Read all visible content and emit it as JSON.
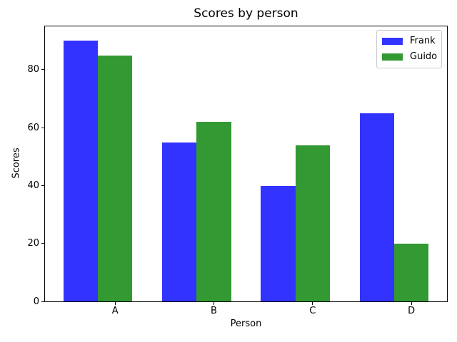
{
  "chart_data": {
    "type": "bar",
    "title": "Scores by person",
    "xlabel": "Person",
    "ylabel": "Scores",
    "categories": [
      "A",
      "B",
      "C",
      "D"
    ],
    "series": [
      {
        "name": "Frank",
        "color": "#3333ff",
        "values": [
          90,
          55,
          40,
          65
        ]
      },
      {
        "name": "Guido",
        "color": "#339933",
        "values": [
          85,
          62,
          54,
          20
        ]
      }
    ],
    "yticks": [
      0,
      20,
      40,
      60,
      80
    ],
    "ylim": [
      0,
      95
    ],
    "bar_width_fraction": 0.35,
    "grid": false,
    "legend": {
      "position": "upper right",
      "entries": [
        "Frank",
        "Guido"
      ]
    }
  }
}
